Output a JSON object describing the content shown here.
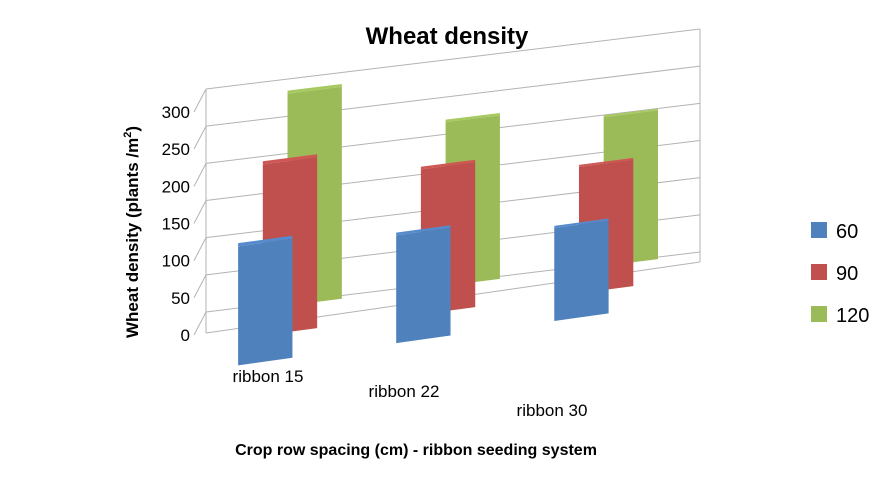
{
  "chart_data": {
    "type": "bar",
    "title": "Wheat density",
    "ylabel_main": "Wheat density (plants /m",
    "ylabel_sup": "2",
    "ylabel_tail": ")",
    "xlabel": "Crop row spacing (cm) - ribbon seeding system",
    "categories": [
      "ribbon 15",
      "ribbon 22",
      "ribbon 30"
    ],
    "series": [
      {
        "name": "60",
        "values": [
          160,
          145,
          125
        ],
        "color": "#4f81bd"
      },
      {
        "name": "90",
        "values": [
          230,
          195,
          170
        ],
        "color": "#c0504d"
      },
      {
        "name": "120",
        "values": [
          285,
          220,
          200
        ],
        "color": "#9bbb59"
      }
    ],
    "yticks": [
      "0",
      "50",
      "100",
      "150",
      "200",
      "250",
      "300"
    ],
    "ylim": [
      0,
      300
    ],
    "grid": true,
    "legend": "right",
    "projection": "3d"
  }
}
